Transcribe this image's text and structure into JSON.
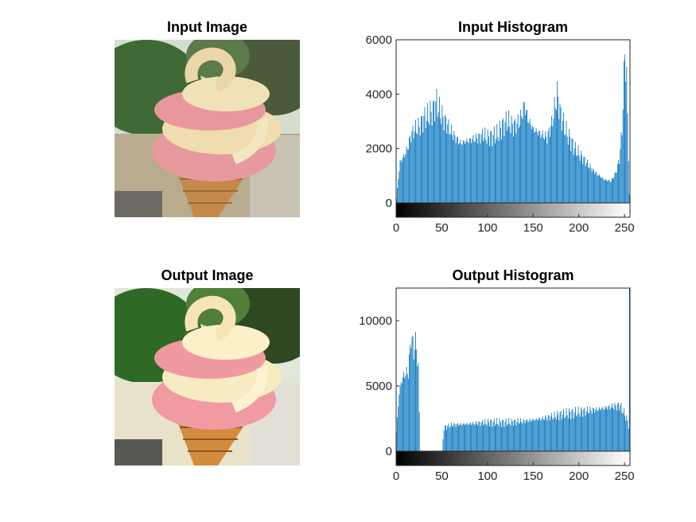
{
  "panels": {
    "input_image_title": "Input Image",
    "input_hist_title": "Input Histogram",
    "output_image_title": "Output Image",
    "output_hist_title": "Output Histogram"
  },
  "colors": {
    "bar": "#0072BD",
    "axis": "#262626",
    "sky": "#c9d9c8",
    "foliage": "#3d6b33",
    "pavement": "#b8ab8e",
    "cream_pink": "#e9979c",
    "cream_yellow": "#efe0b2",
    "cone": "#c98e4e"
  },
  "chart_data": [
    {
      "type": "bar",
      "title": "Input Histogram",
      "xlabel": "",
      "ylabel": "",
      "xlim": [
        0,
        255
      ],
      "ylim": [
        0,
        6000
      ],
      "xticks": [
        0,
        50,
        100,
        150,
        200,
        250
      ],
      "yticks": [
        0,
        2000,
        4000,
        6000
      ],
      "colorbar": "grayscale 0-255",
      "profile": [
        [
          0,
          150
        ],
        [
          2,
          900
        ],
        [
          4,
          1500
        ],
        [
          8,
          1700
        ],
        [
          12,
          2000
        ],
        [
          16,
          2500
        ],
        [
          20,
          2700
        ],
        [
          25,
          2800
        ],
        [
          30,
          3100
        ],
        [
          35,
          3200
        ],
        [
          40,
          3400
        ],
        [
          44,
          3700
        ],
        [
          48,
          3300
        ],
        [
          55,
          2900
        ],
        [
          62,
          2500
        ],
        [
          70,
          2200
        ],
        [
          80,
          2300
        ],
        [
          90,
          2400
        ],
        [
          95,
          2500
        ],
        [
          100,
          2400
        ],
        [
          110,
          2500
        ],
        [
          118,
          2900
        ],
        [
          122,
          3000
        ],
        [
          128,
          2800
        ],
        [
          135,
          3000
        ],
        [
          140,
          3600
        ],
        [
          145,
          3000
        ],
        [
          150,
          2700
        ],
        [
          160,
          2500
        ],
        [
          165,
          2400
        ],
        [
          170,
          2900
        ],
        [
          176,
          4000
        ],
        [
          180,
          3200
        ],
        [
          186,
          2600
        ],
        [
          195,
          2000
        ],
        [
          205,
          1600
        ],
        [
          215,
          1200
        ],
        [
          222,
          1000
        ],
        [
          228,
          850
        ],
        [
          235,
          800
        ],
        [
          240,
          1100
        ],
        [
          244,
          1600
        ],
        [
          247,
          2700
        ],
        [
          250,
          5600
        ],
        [
          252,
          4500
        ],
        [
          254,
          1800
        ],
        [
          255,
          300
        ]
      ]
    },
    {
      "type": "bar",
      "title": "Output Histogram",
      "xlabel": "",
      "ylabel": "",
      "xlim": [
        0,
        255
      ],
      "ylim": [
        0,
        12500
      ],
      "xticks": [
        0,
        50,
        100,
        150,
        200,
        250
      ],
      "yticks": [
        0,
        5000,
        10000
      ],
      "colorbar": "grayscale 0-255",
      "profile": [
        [
          0,
          1500
        ],
        [
          3,
          4500
        ],
        [
          6,
          5500
        ],
        [
          10,
          6000
        ],
        [
          13,
          6000
        ],
        [
          16,
          8800
        ],
        [
          19,
          7800
        ],
        [
          22,
          8300
        ],
        [
          24,
          6000
        ],
        [
          25,
          3000
        ],
        [
          26,
          0
        ],
        [
          50,
          0
        ],
        [
          52,
          1800
        ],
        [
          60,
          2000
        ],
        [
          80,
          2100
        ],
        [
          100,
          2200
        ],
        [
          120,
          2200
        ],
        [
          140,
          2300
        ],
        [
          160,
          2500
        ],
        [
          180,
          2800
        ],
        [
          200,
          3000
        ],
        [
          220,
          3200
        ],
        [
          235,
          3400
        ],
        [
          245,
          3500
        ],
        [
          252,
          2500
        ],
        [
          254,
          2000
        ],
        [
          255,
          12500
        ]
      ]
    }
  ]
}
